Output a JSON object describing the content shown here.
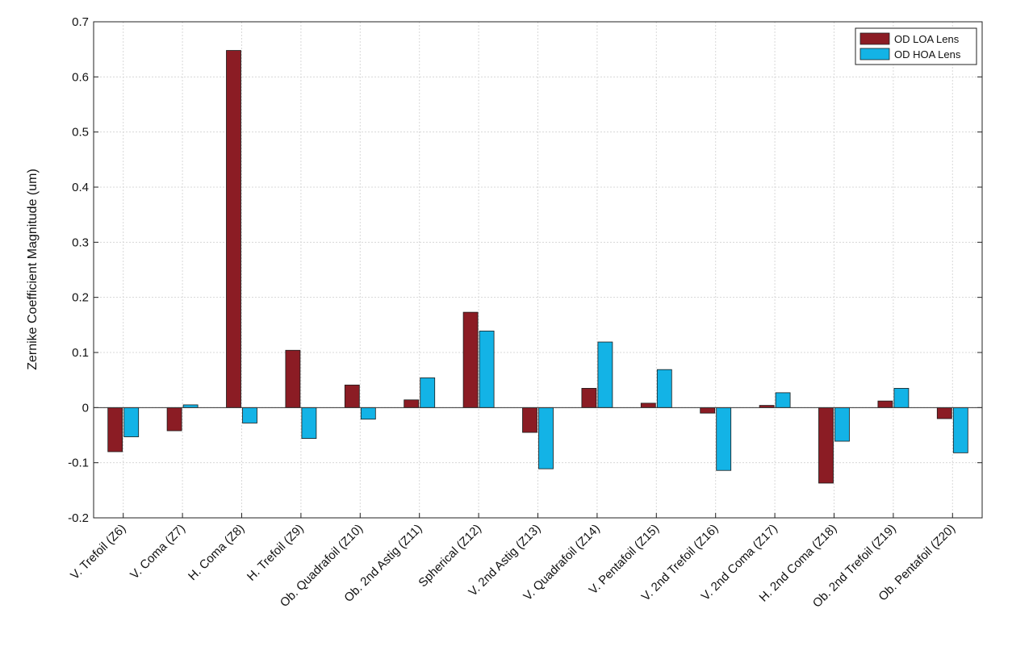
{
  "chart_data": {
    "type": "bar",
    "title": "",
    "xlabel": "",
    "ylabel": "Zernike Coefficient Magnitude (um)",
    "ylim": [
      -0.2,
      0.7
    ],
    "yticks": [
      "-0.2",
      "-0.1",
      "0",
      "0.1",
      "0.2",
      "0.3",
      "0.4",
      "0.5",
      "0.6",
      "0.7"
    ],
    "ytick_values": [
      -0.2,
      -0.1,
      0,
      0.1,
      0.2,
      0.3,
      0.4,
      0.5,
      0.6,
      0.7
    ],
    "grid": true,
    "legend_position": "top-right",
    "categories": [
      "V. Trefoil (Z6)",
      "V. Coma (Z7)",
      "H. Coma (Z8)",
      "H. Trefoil (Z9)",
      "Ob. Quadrafoil (Z10)",
      "Ob. 2nd Astig (Z11)",
      "Spherical (Z12)",
      "V. 2nd Astig (Z13)",
      "V. Quadrafoil (Z14)",
      "V. Pentafoil (Z15)",
      "V. 2nd Trefoil (Z16)",
      "V. 2nd Coma (Z17)",
      "H. 2nd Coma (Z18)",
      "Ob. 2nd Trefoil (Z19)",
      "Ob. Pentafoil (Z20)"
    ],
    "series": [
      {
        "name": "OD LOA Lens",
        "color": "#8b1c24",
        "values": [
          -0.08,
          -0.042,
          0.648,
          0.104,
          0.041,
          0.014,
          0.173,
          -0.045,
          0.035,
          0.008,
          -0.01,
          0.004,
          -0.137,
          0.012,
          -0.02
        ]
      },
      {
        "name": "OD HOA Lens",
        "color": "#13b3e6",
        "values": [
          -0.053,
          0.005,
          -0.028,
          -0.056,
          -0.021,
          0.054,
          0.139,
          -0.111,
          0.119,
          0.069,
          -0.114,
          0.027,
          -0.061,
          0.035,
          -0.082
        ]
      }
    ]
  }
}
